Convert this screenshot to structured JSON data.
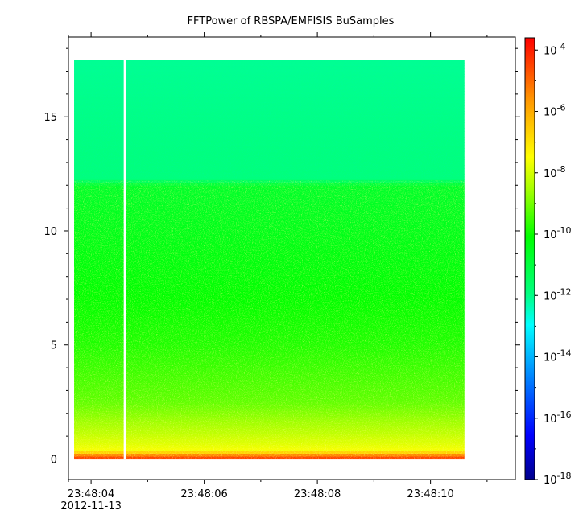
{
  "chart_data": {
    "type": "heatmap",
    "title": "FFTPower of RBSPA/EMFISIS  BuSamples",
    "xlabel": "",
    "ylabel": "",
    "x_ticks": [
      {
        "value": "23:48:04",
        "sublabel": "2012-11-13"
      },
      {
        "value": "23:48:06"
      },
      {
        "value": "23:48:08"
      },
      {
        "value": "23:48:10"
      }
    ],
    "x_minor_ticks": [
      "23:48:03.6",
      "23:48:05",
      "23:48:07",
      "23:48:09",
      "23:48:11"
    ],
    "x_range": [
      "23:48:03.6",
      "23:48:11.5"
    ],
    "data_extent_x": [
      "23:48:03.7",
      "23:48:10.6"
    ],
    "y_ticks": [
      0,
      5,
      10,
      15
    ],
    "y_range": [
      -0.9,
      18.5
    ],
    "data_extent_y": [
      0,
      17.5
    ],
    "gap_at": "23:48:04.6",
    "colorbar": {
      "scale": "log",
      "range_exponents": [
        -18,
        -3.6
      ],
      "ticks": [
        {
          "base": "10",
          "exp": "-4"
        },
        {
          "base": "10",
          "exp": "-6"
        },
        {
          "base": "10",
          "exp": "-8"
        },
        {
          "base": "10",
          "exp": "-10"
        },
        {
          "base": "10",
          "exp": "-12"
        },
        {
          "base": "10",
          "exp": "-14"
        },
        {
          "base": "10",
          "exp": "-16"
        },
        {
          "base": "10",
          "exp": "-18"
        }
      ]
    },
    "power_profile": [
      {
        "y": 0.1,
        "log_power": -4.5
      },
      {
        "y": 0.4,
        "log_power": -7.6
      },
      {
        "y": 1.2,
        "log_power": -8.3
      },
      {
        "y": 2.5,
        "log_power": -9.2
      },
      {
        "y": 5,
        "log_power": -9.8
      },
      {
        "y": 8,
        "log_power": -10.2
      },
      {
        "y": 12,
        "log_power": -10.7
      },
      {
        "y": 12.3,
        "log_power": -11.9
      },
      {
        "y": 17.5,
        "log_power": -12.1
      }
    ],
    "grid": false,
    "legend": "colorbar-right"
  }
}
